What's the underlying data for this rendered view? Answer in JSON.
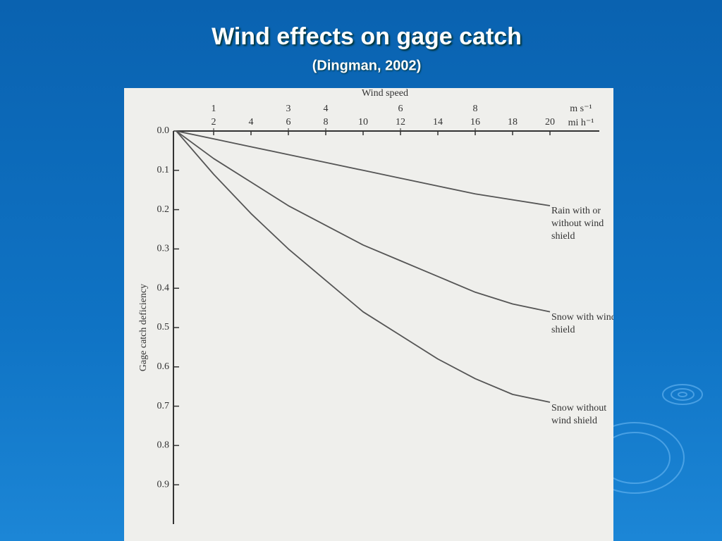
{
  "chart_data": {
    "type": "line",
    "title": "Wind effects on gage catch",
    "subtitle": "(Dingman, 2002)",
    "x_label": "Wind speed",
    "y_label": "Gage catch deficiency",
    "x_unit": "mi h⁻¹",
    "x2_unit": "m s⁻¹",
    "x": [
      0,
      2,
      4,
      6,
      8,
      10,
      12,
      14,
      16,
      18,
      20
    ],
    "xlim": [
      0,
      20
    ],
    "xticks": [
      2,
      4,
      6,
      8,
      10,
      12,
      14,
      16,
      18,
      20
    ],
    "x2lim": [
      0,
      10
    ],
    "x2ticks": [
      1,
      3,
      4,
      6,
      8
    ],
    "ylim": [
      0,
      1
    ],
    "yticks": [
      {
        "value": 0,
        "label": "0.0"
      },
      0.1,
      0.2,
      0.3,
      0.4,
      0.5,
      0.6,
      0.7,
      0.8,
      0.9
    ],
    "series": [
      {
        "name": "Rain with or without wind shield",
        "color": "#555555",
        "values": [
          0,
          0.02,
          0.04,
          0.06,
          0.08,
          0.1,
          0.12,
          0.14,
          0.16,
          0.175,
          0.19
        ]
      },
      {
        "name": "Snow with wind shield",
        "color": "#555555",
        "values": [
          0,
          0.07,
          0.13,
          0.19,
          0.24,
          0.29,
          0.33,
          0.37,
          0.41,
          0.44,
          0.46
        ]
      },
      {
        "name": "Snow without wind shield",
        "color": "#555555",
        "values": [
          0,
          0.11,
          0.21,
          0.3,
          0.38,
          0.46,
          0.52,
          0.58,
          0.63,
          0.67,
          0.69
        ]
      }
    ]
  }
}
